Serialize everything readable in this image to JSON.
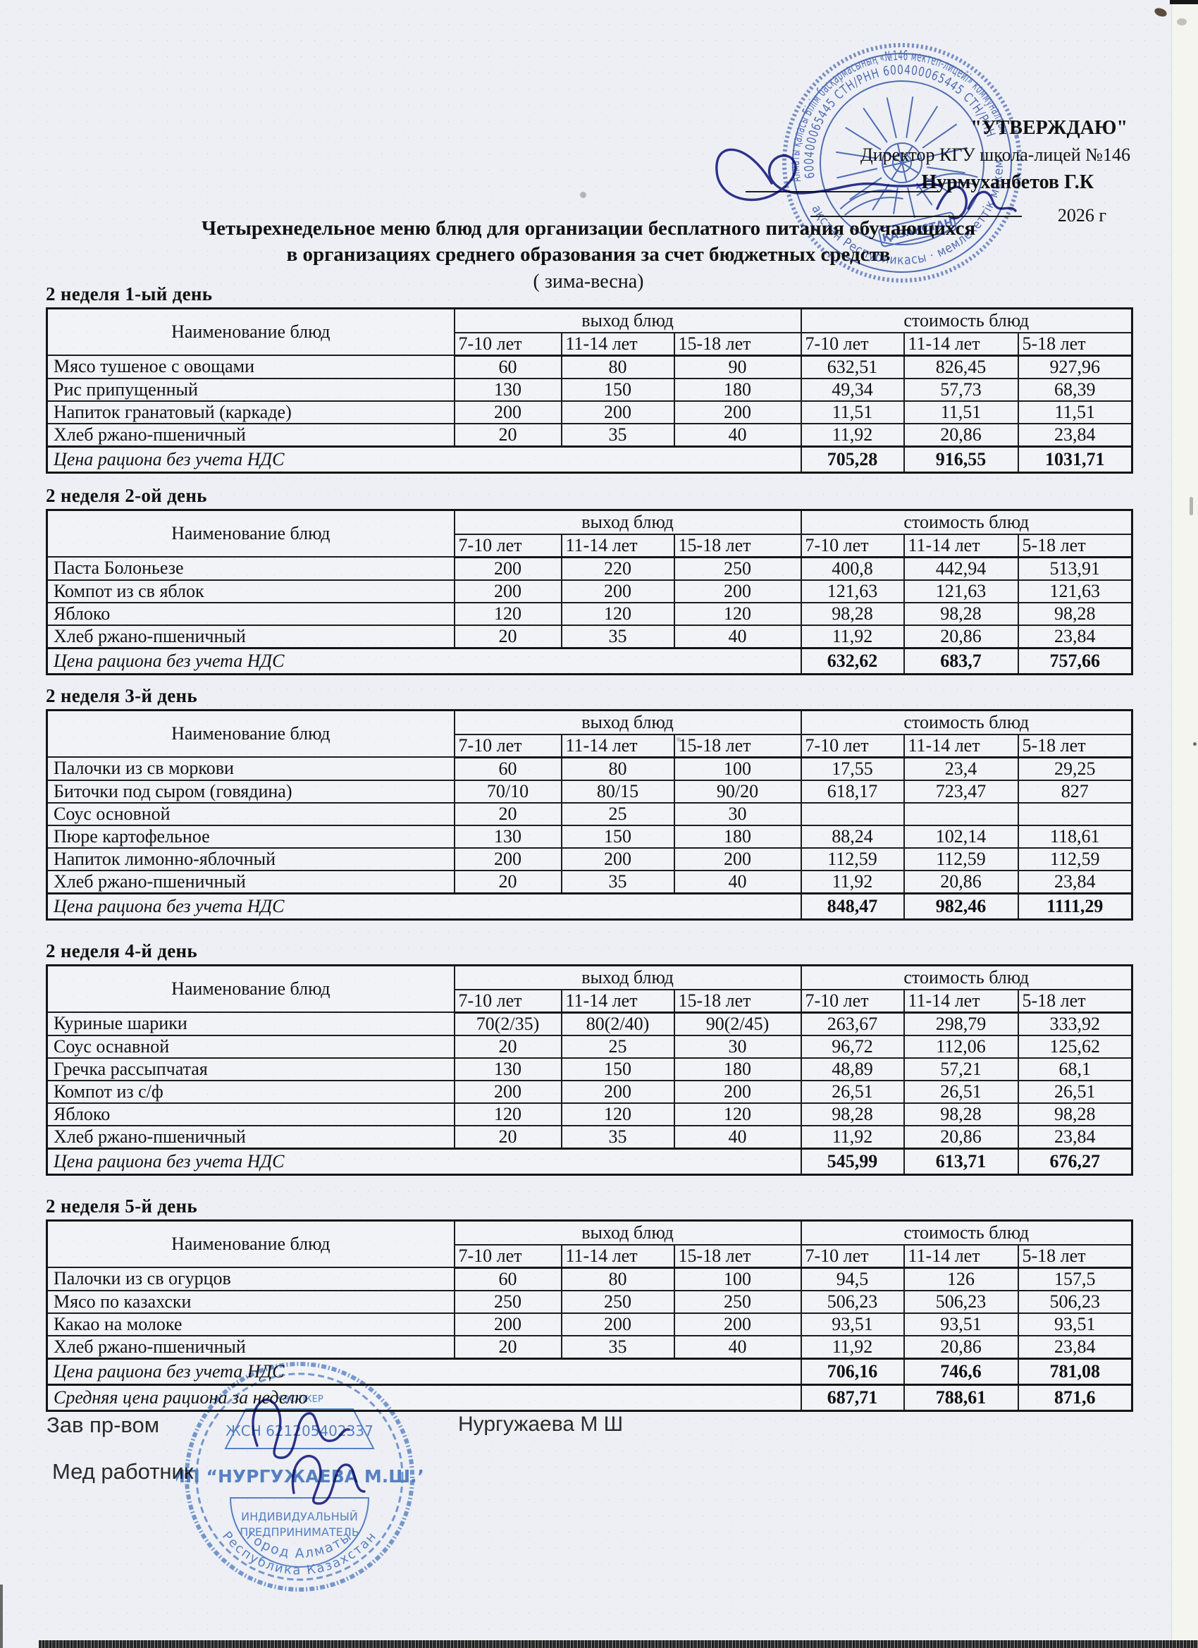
{
  "approval": {
    "approve_label": "\"УТВЕРЖДАЮ\"",
    "director_line": "Директор КГУ школа-лицей №146",
    "director_name": "Нурмуханбетов Г.К",
    "year_line": "2026 г"
  },
  "title": {
    "line1": "Четырехнедельное меню блюд для организации бесплатного питания обучающихся",
    "line2": "в организациях среднего образования за счет бюджетных средств",
    "line3": "( зима-весна)"
  },
  "table_headers": {
    "name_col": "Наименование блюд",
    "output_group": "выход блюд",
    "cost_group": "стоимость блюд",
    "age_columns": [
      "7-10 лет",
      "11-14 лет",
      "15-18 лет",
      "7-10 лет",
      "11-14 лет",
      "5-18 лет"
    ]
  },
  "menu_tables": [
    {
      "heading": "2 неделя 1-ый день",
      "rows": [
        [
          "Мясо тушеное с овощами",
          "60",
          "80",
          "90",
          "632,51",
          "826,45",
          "927,96"
        ],
        [
          "Рис припущенный",
          "130",
          "150",
          "180",
          "49,34",
          "57,73",
          "68,39"
        ],
        [
          "Напиток гранатовый (каркаде)",
          "200",
          "200",
          "200",
          "11,51",
          "11,51",
          "11,51"
        ],
        [
          "Хлеб ржано-пшеничный",
          "20",
          "35",
          "40",
          "11,92",
          "20,86",
          "23,84"
        ]
      ],
      "footers": [
        {
          "label": "Цена рациона без учета НДС",
          "values": [
            "705,28",
            "916,55",
            "1031,71"
          ]
        }
      ]
    },
    {
      "heading": "2 неделя 2-ой день",
      "rows": [
        [
          "Паста Болоньезе",
          "200",
          "220",
          "250",
          "400,8",
          "442,94",
          "513,91"
        ],
        [
          "Компот из св яблок",
          "200",
          "200",
          "200",
          "121,63",
          "121,63",
          "121,63"
        ],
        [
          "Яблоко",
          "120",
          "120",
          "120",
          "98,28",
          "98,28",
          "98,28"
        ],
        [
          "Хлеб ржано-пшеничный",
          "20",
          "35",
          "40",
          "11,92",
          "20,86",
          "23,84"
        ]
      ],
      "footers": [
        {
          "label": "Цена рациона без учета НДС",
          "values": [
            "632,62",
            "683,7",
            "757,66"
          ]
        }
      ]
    },
    {
      "heading": "2 неделя 3-й день",
      "rows": [
        [
          "Палочки из св моркови",
          "60",
          "80",
          "100",
          "17,55",
          "23,4",
          "29,25"
        ],
        [
          "Биточки под сыром (говядина)",
          "70/10",
          "80/15",
          "90/20",
          "618,17",
          "723,47",
          "827"
        ],
        [
          "Соус основной",
          "20",
          "25",
          "30",
          "",
          "",
          ""
        ],
        [
          "Пюре картофельное",
          "130",
          "150",
          "180",
          "88,24",
          "102,14",
          "118,61"
        ],
        [
          "Напиток лимонно-яблочный",
          "200",
          "200",
          "200",
          "112,59",
          "112,59",
          "112,59"
        ],
        [
          "Хлеб ржано-пшеничный",
          "20",
          "35",
          "40",
          "11,92",
          "20,86",
          "23,84"
        ]
      ],
      "footers": [
        {
          "label": "Цена рациона без учета НДС",
          "values": [
            "848,47",
            "982,46",
            "1111,29"
          ]
        }
      ]
    },
    {
      "heading": "2 неделя 4-й день",
      "rows": [
        [
          "Куриные шарики",
          "70(2/35)",
          "80(2/40)",
          "90(2/45)",
          "263,67",
          "298,79",
          "333,92"
        ],
        [
          "Соус оснавной",
          "20",
          "25",
          "30",
          "96,72",
          "112,06",
          "125,62"
        ],
        [
          "Гречка рассыпчатая",
          "130",
          "150",
          "180",
          "48,89",
          "57,21",
          "68,1"
        ],
        [
          "Компот из с/ф",
          "200",
          "200",
          "200",
          "26,51",
          "26,51",
          "26,51"
        ],
        [
          "Яблоко",
          "120",
          "120",
          "120",
          "98,28",
          "98,28",
          "98,28"
        ],
        [
          "Хлеб ржано-пшеничный",
          "20",
          "35",
          "40",
          "11,92",
          "20,86",
          "23,84"
        ]
      ],
      "footers": [
        {
          "label": "Цена рациона без учета НДС",
          "values": [
            "545,99",
            "613,71",
            "676,27"
          ]
        }
      ]
    },
    {
      "heading": "2 неделя 5-й день",
      "rows": [
        [
          "Палочки из св огурцов",
          "60",
          "80",
          "100",
          "94,5",
          "126",
          "157,5"
        ],
        [
          "Мясо по казахски",
          "250",
          "250",
          "250",
          "506,23",
          "506,23",
          "506,23"
        ],
        [
          "Какао на молоке",
          "200",
          "200",
          "200",
          "93,51",
          "93,51",
          "93,51"
        ],
        [
          "Хлеб ржано-пшеничный",
          "20",
          "35",
          "40",
          "11,92",
          "20,86",
          "23,84"
        ]
      ],
      "footers": [
        {
          "label": "Цена рациона без учета НДС",
          "values": [
            "706,16",
            "746,6",
            "781,08"
          ]
        },
        {
          "label": "Средняя цена рациона за неделю",
          "values": [
            "687,71",
            "788,61",
            "871,6"
          ]
        }
      ]
    }
  ],
  "signoff": {
    "zav_label": "Зав пр-вом",
    "zav_name": "Нургужаева М Ш",
    "med_label": "Мед работник"
  },
  "stamps": {
    "top_stamp": {
      "ring_text_outer": "Алматы қаласы Білім басқармасының «№146 мектеп-лицейі» коммуналдық",
      "ring_text_inner": "600400065445 СТН/РНН 600400065445 СТН/РНН",
      "ring_text_bottom": "· Қазақстан Республикасы · мемлекеттік мекемесі ·",
      "emblem_banner": "ҚАЗАҚСТАН"
    },
    "bottom_stamp": {
      "top_line": "КӘСІПКЕР",
      "id_line": "ЖСН 621205402337",
      "center_name": "ИП “НУРГУЖАЕВА М.Ш.”",
      "sub_line1": "ИНДИВИДУАЛЬНЫЙ",
      "sub_line2": "ПРЕДПРИНИМАТЕЛЬ",
      "arc_bottom_inner": "город Алматы",
      "arc_bottom_outer": "Республика Казахстан"
    }
  }
}
